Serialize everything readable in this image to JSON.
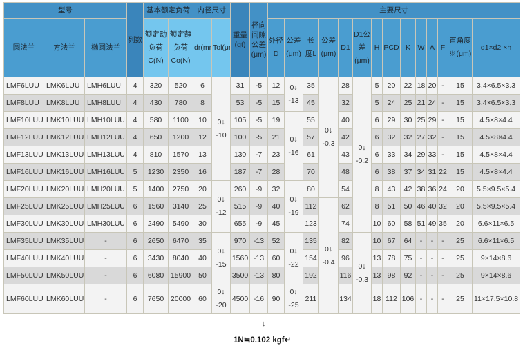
{
  "header": {
    "model": "型号",
    "rows_count": "列数",
    "basic_load": "基本额定负荷",
    "inner_dim": "内径尺寸",
    "weight": "重量(gt)",
    "radial_clearance": "径向间隙公差(μm)",
    "main_dims": "主要尺寸",
    "flange_round": "圆法兰",
    "flange_square": "方法兰",
    "flange_oval": "椭圆法兰",
    "dynamic_load": "额定动负荷C(N)",
    "static_load": "额定静负荷Co(N)",
    "dr": "dr(mm)",
    "tol": "Tol(μm)",
    "outer_d": "外径D",
    "d_tol": "公差(μm)",
    "length": "长度L",
    "l_tol": "公差(μm)",
    "d1": "D1",
    "d1_tol": "D1公差(μm)",
    "h": "H",
    "pcd": "PCD",
    "k": "K",
    "w": "W",
    "a": "A",
    "f": "F",
    "perp": "直角度※(μm)",
    "d1d2h": "d1×d2 ×h"
  },
  "rows": [
    {
      "fr": "LMF6LUU",
      "fs": "LMK6LUU",
      "fo": "LMH6LUU",
      "n": "4",
      "c": "320",
      "co": "520",
      "dr": "6",
      "wt": "31",
      "rc": "-5",
      "D": "12",
      "L": "35",
      "D1": "28",
      "H": "5",
      "PCD": "20",
      "K": "22",
      "W": "18",
      "A": "20",
      "F": "-",
      "perp": "15",
      "d1d2h": "3.4×6.5×3.3"
    },
    {
      "fr": "LMF8LUU",
      "fs": "LMK8LUU",
      "fo": "LMH8LUU",
      "n": "4",
      "c": "430",
      "co": "780",
      "dr": "8",
      "wt": "53",
      "rc": "-5",
      "D": "15",
      "L": "45",
      "D1": "32",
      "H": "5",
      "PCD": "24",
      "K": "25",
      "W": "21",
      "A": "24",
      "F": "-",
      "perp": "15",
      "d1d2h": "3.4×6.5×3.3"
    },
    {
      "fr": "LMF10LUU",
      "fs": "LMK10LUU",
      "fo": "LMH10LUU",
      "n": "4",
      "c": "580",
      "co": "1100",
      "dr": "10",
      "wt": "105",
      "rc": "-5",
      "D": "19",
      "L": "55",
      "D1": "40",
      "H": "6",
      "PCD": "29",
      "K": "30",
      "W": "25",
      "A": "29",
      "F": "-",
      "perp": "15",
      "d1d2h": "4.5×8×4.4"
    },
    {
      "fr": "LMF12LUU",
      "fs": "LMK12LUU",
      "fo": "LMH12LUU",
      "n": "4",
      "c": "650",
      "co": "1200",
      "dr": "12",
      "wt": "100",
      "rc": "-5",
      "D": "21",
      "L": "57",
      "D1": "42",
      "H": "6",
      "PCD": "32",
      "K": "32",
      "W": "27",
      "A": "32",
      "F": "-",
      "perp": "15",
      "d1d2h": "4.5×8×4.4"
    },
    {
      "fr": "LMF13LUU",
      "fs": "LMK13LUU",
      "fo": "LMH13LUU",
      "n": "4",
      "c": "810",
      "co": "1570",
      "dr": "13",
      "wt": "130",
      "rc": "-7",
      "D": "23",
      "L": "61",
      "D1": "43",
      "H": "6",
      "PCD": "33",
      "K": "34",
      "W": "29",
      "A": "33",
      "F": "-",
      "perp": "15",
      "d1d2h": "4.5×8×4.4"
    },
    {
      "fr": "LMF16LUU",
      "fs": "LMK16LUU",
      "fo": "LMH16LUU",
      "n": "5",
      "c": "1230",
      "co": "2350",
      "dr": "16",
      "wt": "187",
      "rc": "-7",
      "D": "28",
      "L": "70",
      "D1": "48",
      "H": "6",
      "PCD": "38",
      "K": "37",
      "W": "34",
      "A": "31",
      "F": "22",
      "perp": "15",
      "d1d2h": "4.5×8×4.4"
    },
    {
      "fr": "LMF20LUU",
      "fs": "LMK20LUU",
      "fo": "LMH20LUU",
      "n": "5",
      "c": "1400",
      "co": "2750",
      "dr": "20",
      "wt": "260",
      "rc": "-9",
      "D": "32",
      "L": "80",
      "D1": "54",
      "H": "8",
      "PCD": "43",
      "K": "42",
      "W": "38",
      "A": "36",
      "F": "24",
      "perp": "20",
      "d1d2h": "5.5×9.5×5.4"
    },
    {
      "fr": "LMF25LUU",
      "fs": "LMK25LUU",
      "fo": "LMH25LUU",
      "n": "6",
      "c": "1560",
      "co": "3140",
      "dr": "25",
      "wt": "515",
      "rc": "-9",
      "D": "40",
      "L": "112",
      "D1": "62",
      "H": "8",
      "PCD": "51",
      "K": "50",
      "W": "46",
      "A": "40",
      "F": "32",
      "perp": "20",
      "d1d2h": "5.5×9.5×5.4"
    },
    {
      "fr": "LMF30LUU",
      "fs": "LMK30LUU",
      "fo": "LMH30LUU",
      "n": "6",
      "c": "2490",
      "co": "5490",
      "dr": "30",
      "wt": "655",
      "rc": "-9",
      "D": "45",
      "L": "123",
      "D1": "74",
      "H": "10",
      "PCD": "60",
      "K": "58",
      "W": "51",
      "A": "49",
      "F": "35",
      "perp": "20",
      "d1d2h": "6.6×11×6.5"
    },
    {
      "fr": "LMF35LUU",
      "fs": "LMK35LUU",
      "fo": "-",
      "n": "6",
      "c": "2650",
      "co": "6470",
      "dr": "35",
      "wt": "970",
      "rc": "-13",
      "D": "52",
      "L": "135",
      "D1": "82",
      "H": "10",
      "PCD": "67",
      "K": "64",
      "W": "-",
      "A": "-",
      "F": "-",
      "perp": "25",
      "d1d2h": "6.6×11×6.5"
    },
    {
      "fr": "LMF40LUU",
      "fs": "LMK40LUU",
      "fo": "-",
      "n": "6",
      "c": "3430",
      "co": "8040",
      "dr": "40",
      "wt": "1560",
      "rc": "-13",
      "D": "60",
      "L": "154",
      "D1": "96",
      "H": "13",
      "PCD": "78",
      "K": "75",
      "W": "-",
      "A": "-",
      "F": "-",
      "perp": "25",
      "d1d2h": "9×14×8.6"
    },
    {
      "fr": "LMF50LUU",
      "fs": "LMK50LUU",
      "fo": "-",
      "n": "6",
      "c": "6080",
      "co": "15900",
      "dr": "50",
      "wt": "3500",
      "rc": "-13",
      "D": "80",
      "L": "192",
      "D1": "116",
      "H": "13",
      "PCD": "98",
      "K": "92",
      "W": "-",
      "A": "-",
      "F": "-",
      "perp": "25",
      "d1d2h": "9×14×8.6"
    },
    {
      "fr": "LMF60LUU",
      "fs": "LMK60LUU",
      "fo": "-",
      "n": "6",
      "c": "7650",
      "co": "20000",
      "dr": "60",
      "wt": "4500",
      "rc": "-16",
      "D": "90",
      "L": "211",
      "D1": "134",
      "H": "18",
      "PCD": "112",
      "K": "106",
      "W": "-",
      "A": "-",
      "F": "-",
      "perp": "25",
      "d1d2h": "11×17.5×10.8"
    }
  ],
  "merged": {
    "tol": [
      {
        "span": 6,
        "top": "0↓",
        "bottom": "-10"
      },
      {
        "span": 3,
        "top": "0↓",
        "bottom": "-12"
      },
      {
        "span": 3,
        "top": "0↓",
        "bottom": "-15"
      },
      {
        "span": 1,
        "top": "0↓",
        "bottom": "-20"
      }
    ],
    "Dtol": [
      {
        "span": 2,
        "top": "0↓",
        "bottom": "-13"
      },
      {
        "span": 4,
        "top": "0↓",
        "bottom": "-16"
      },
      {
        "span": 3,
        "top": "0↓",
        "bottom": "-19"
      },
      {
        "span": 3,
        "top": "0↓",
        "bottom": "-22"
      },
      {
        "span": 1,
        "top": "0↓",
        "bottom": "-25"
      }
    ],
    "Ltol": [
      {
        "span": 7,
        "top": "0↓",
        "bottom": "-0.3"
      },
      {
        "span": 6,
        "top": "0↓",
        "bottom": "-0.4"
      }
    ],
    "D1tol": [
      {
        "span": 9,
        "top": "0↓",
        "bottom": "-0.2"
      },
      {
        "span": 4,
        "top": "0↓",
        "bottom": "-0.3"
      }
    ]
  },
  "footer": {
    "arrow": "↓",
    "note": "1N≒0.102 kgf↵"
  },
  "colors": {
    "header": "#4391c6",
    "header_light": "#74c6ee",
    "row_alt": "#d9d9d9",
    "row": "#f3f3f3"
  }
}
